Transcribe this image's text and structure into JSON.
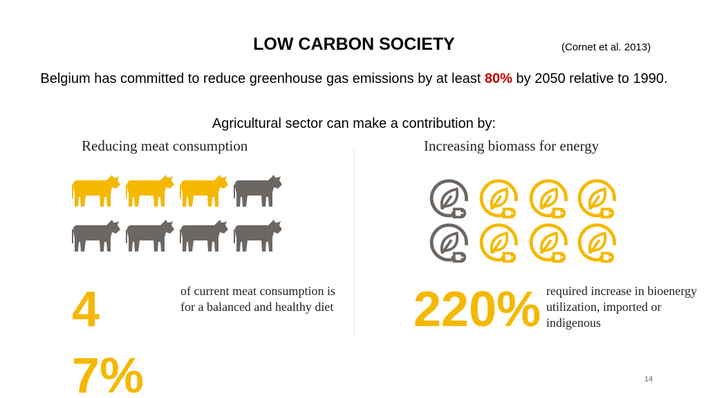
{
  "header": {
    "title": "LOW CARBON SOCIETY",
    "citation": "(Cornet et al. 2013)"
  },
  "intro": {
    "before": "Belgium has committed to reduce greenhouse gas emissions by at least ",
    "highlight": "80%",
    "after": " by 2050 relative to 1990."
  },
  "subtitle": "Agricultural sector can make a contribution by:",
  "left": {
    "heading": "Reducing meat consumption",
    "figure": "47%",
    "description": "of current meat consumption is for a balanced and healthy diet"
  },
  "right": {
    "heading": "Increasing biomass for energy",
    "figure": "220%",
    "description": "required increase in bioenergy utilization, imported or indigenous"
  },
  "page_number": "14"
}
